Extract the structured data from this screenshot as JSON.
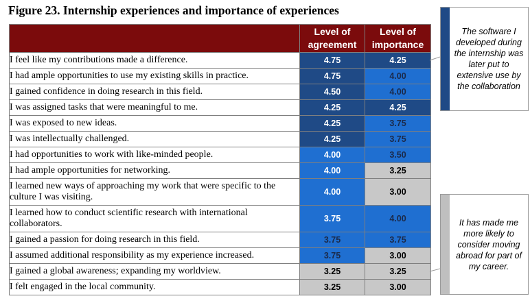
{
  "figure": {
    "title": "Figure 23. Internship experiences and importance of experiences"
  },
  "table": {
    "headers": {
      "agreement": "Level of agreement",
      "importance": "Level of importance"
    },
    "colors": {
      "header": "#7b0b0c",
      "dark_blue": "#1f4a86",
      "medium_blue": "#1f6fd1",
      "grey": "#c8c8c8"
    },
    "rows": [
      {
        "label": "I feel like my contributions made a difference.",
        "agreement": "4.75",
        "importance": "4.25"
      },
      {
        "label": "I had ample opportunities to use my existing skills in practice.",
        "agreement": "4.75",
        "importance": "4.00"
      },
      {
        "label": "I gained confidence in doing research in this field.",
        "agreement": "4.50",
        "importance": "4.00"
      },
      {
        "label": "I was assigned tasks that were meaningful to me.",
        "agreement": "4.25",
        "importance": "4.25"
      },
      {
        "label": "I was exposed to new ideas.",
        "agreement": "4.25",
        "importance": "3.75"
      },
      {
        "label": "I was intellectually challenged.",
        "agreement": "4.25",
        "importance": "3.75"
      },
      {
        "label": "I had opportunities to work with like-minded people.",
        "agreement": "4.00",
        "importance": "3.50"
      },
      {
        "label": "I had ample opportunities for networking.",
        "agreement": "4.00",
        "importance": "3.25"
      },
      {
        "label": "I learned new ways of approaching my work that were specific to the culture I was visiting.",
        "agreement": "4.00",
        "importance": "3.00"
      },
      {
        "label": "I learned how to conduct scientific research with international collaborators.",
        "agreement": "3.75",
        "importance": "4.00"
      },
      {
        "label": "I gained a passion for doing research in this field.",
        "agreement": "3.75",
        "importance": "3.75"
      },
      {
        "label": "I assumed additional responsibility as my experience increased.",
        "agreement": "3.75",
        "importance": "3.00"
      },
      {
        "label": "I gained a global awareness; expanding my worldview.",
        "agreement": "3.25",
        "importance": "3.25"
      },
      {
        "label": "I felt engaged in the local community.",
        "agreement": "3.25",
        "importance": "3.00"
      }
    ]
  },
  "callouts": [
    {
      "text": "The software I developed during the internship was later put to extensive use by the collaboration"
    },
    {
      "text": "It has made me more likely to consider moving abroad for part of my career."
    }
  ]
}
